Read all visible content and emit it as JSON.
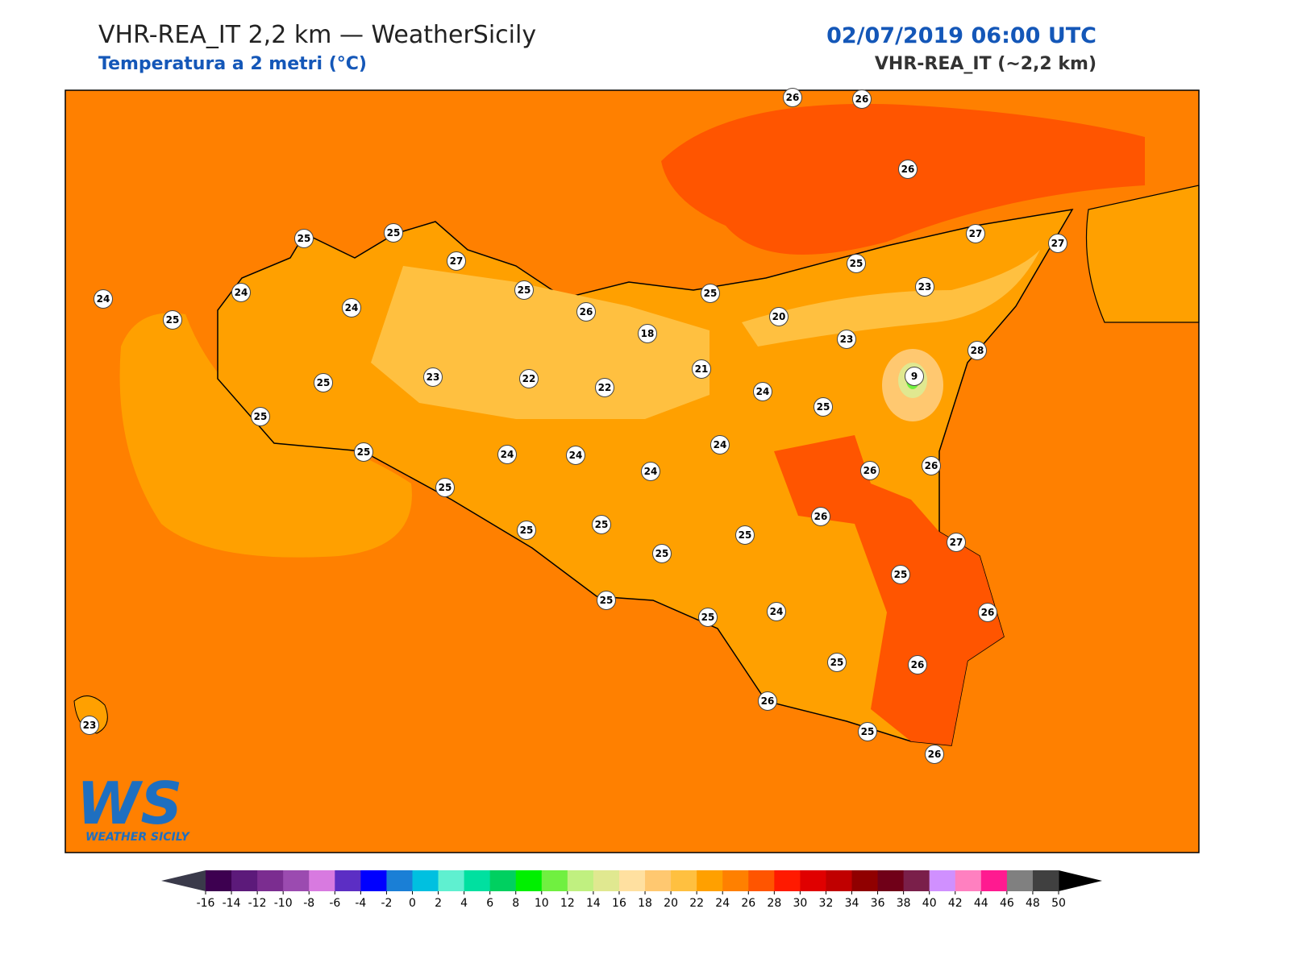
{
  "header": {
    "title": "VHR-REA_IT 2,2 km — WeatherSicily",
    "subtitle": "Temperatura a 2 metri (°C)",
    "datetime": "02/07/2019 06:00 UTC",
    "model": "VHR-REA_IT (~2,2 km)"
  },
  "stations": [
    26,
    26,
    26,
    25,
    25,
    27,
    27,
    27,
    25,
    24,
    24,
    25,
    24,
    25,
    26,
    25,
    23,
    20,
    18,
    23,
    28,
    21,
    9,
    23,
    22,
    22,
    24,
    25,
    25,
    25,
    24,
    25,
    24,
    24,
    24,
    26,
    26,
    25,
    26,
    25,
    25,
    25,
    25,
    27,
    25,
    25,
    25,
    24,
    26,
    25,
    26,
    26,
    23,
    25,
    26
  ],
  "colorbar": {
    "ticks": [
      -16,
      -14,
      -12,
      -10,
      -8,
      -6,
      -4,
      -2,
      0,
      2,
      4,
      6,
      8,
      10,
      12,
      14,
      16,
      18,
      20,
      22,
      24,
      26,
      28,
      30,
      32,
      34,
      36,
      38,
      40,
      42,
      44,
      46,
      48,
      50
    ],
    "colors": [
      "#3d0050",
      "#5c1a7a",
      "#7b2d90",
      "#9b4bb0",
      "#d87ae0",
      "#5c2ec4",
      "#0000ff",
      "#1a7fd6",
      "#00c0e0",
      "#5ff0d0",
      "#00e0a0",
      "#00d060",
      "#00f000",
      "#70f040",
      "#c0f080",
      "#e0e890",
      "#ffe0a0",
      "#ffc870",
      "#ffc040",
      "#ffa000",
      "#ff8000",
      "#ff5500",
      "#ff1a00",
      "#e00000",
      "#c00000",
      "#900000",
      "#700018",
      "#7a1f4a",
      "#d090ff",
      "#ff80c0",
      "#ff1a90",
      "#808080",
      "#404040"
    ],
    "under_color": "#3a3a4a",
    "over_color": "#000000"
  },
  "logo": {
    "mark": "WS",
    "text": "WEATHER SICILY"
  }
}
